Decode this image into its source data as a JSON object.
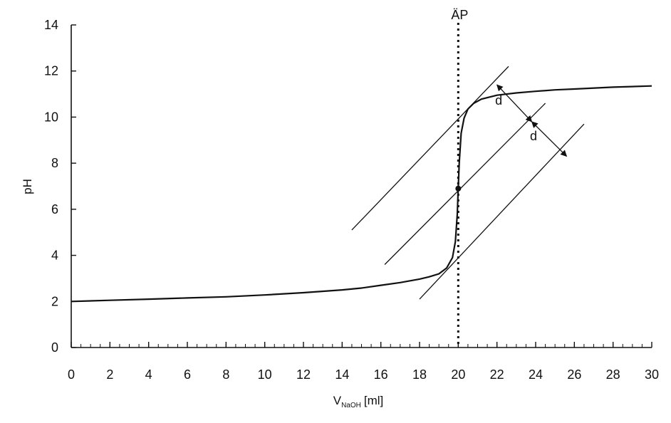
{
  "chart_data": {
    "type": "line",
    "title": "",
    "xlabel": "V",
    "xlabel_subscript": "NaOH",
    "xlabel_unit": "[ml]",
    "ylabel": "pH",
    "xlim": [
      0,
      30
    ],
    "ylim": [
      0,
      14
    ],
    "x_ticks": [
      "0",
      "2",
      "4",
      "6",
      "8",
      "10",
      "12",
      "14",
      "16",
      "18",
      "20",
      "22",
      "24",
      "26",
      "28",
      "30"
    ],
    "y_ticks": [
      "0",
      "2",
      "4",
      "6",
      "8",
      "10",
      "12",
      "14"
    ],
    "grid": false,
    "legend": "none",
    "series": [
      {
        "x": [
          0,
          2,
          4,
          6,
          8,
          10,
          12,
          14,
          15,
          16,
          17,
          18,
          18.5,
          19,
          19.4,
          19.7,
          19.85,
          19.95,
          20.0,
          20.05,
          20.15,
          20.3,
          20.5,
          20.8,
          21.2,
          22,
          23,
          24,
          25,
          26,
          28,
          30
        ],
        "y": [
          2.0,
          2.05,
          2.1,
          2.15,
          2.2,
          2.28,
          2.38,
          2.5,
          2.58,
          2.7,
          2.82,
          2.97,
          3.07,
          3.2,
          3.45,
          3.9,
          4.6,
          5.8,
          6.9,
          8.0,
          9.3,
          9.95,
          10.35,
          10.6,
          10.78,
          10.95,
          11.05,
          11.12,
          11.18,
          11.22,
          11.3,
          11.35
        ]
      }
    ],
    "equivalence_point": {
      "label": "ÄP",
      "x": 20.0,
      "y": 6.9
    },
    "tangent_lines": [
      {
        "x": [
          14.5,
          22.6
        ],
        "y": [
          5.1,
          12.2
        ]
      },
      {
        "x": [
          16.2,
          24.5
        ],
        "y": [
          3.6,
          10.6
        ]
      },
      {
        "x": [
          18.0,
          26.5
        ],
        "y": [
          2.1,
          9.7
        ]
      }
    ],
    "distance_arrows": [
      {
        "label": "d",
        "from": [
          22.0,
          11.4
        ],
        "to": [
          23.8,
          9.8
        ]
      },
      {
        "label": "d",
        "from": [
          23.8,
          9.8
        ],
        "to": [
          25.6,
          8.3
        ]
      }
    ]
  }
}
